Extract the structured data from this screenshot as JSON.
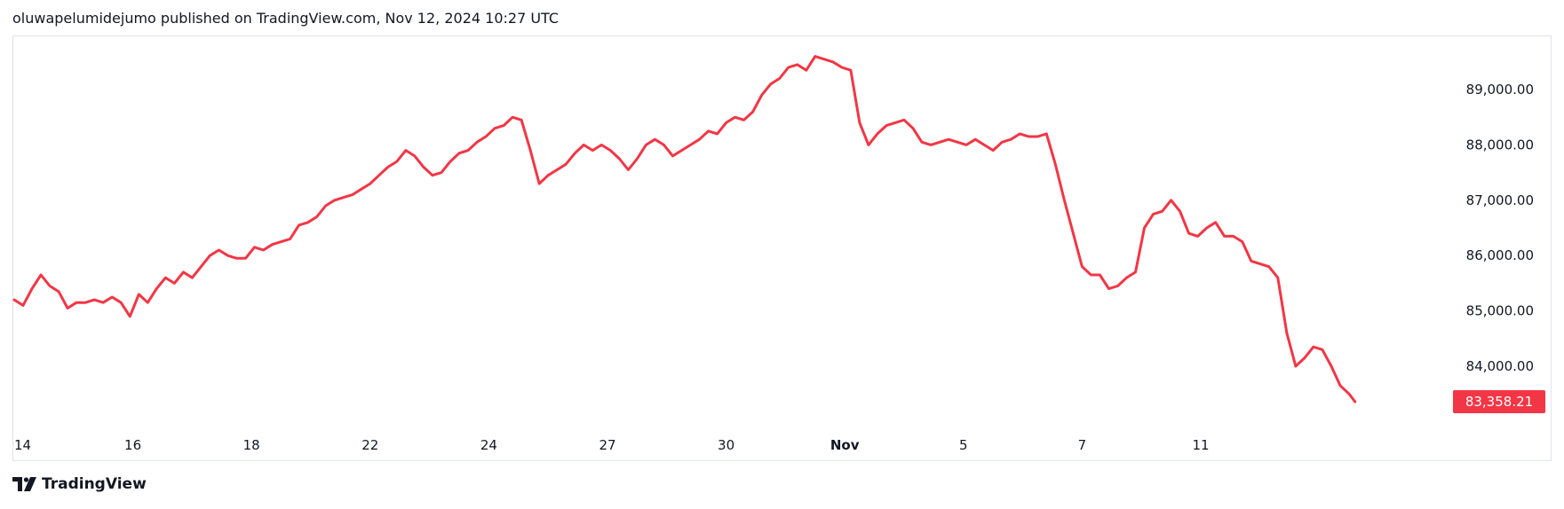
{
  "header": {
    "publish_line": "oluwapelumidejumo published on TradingView.com, Nov 12, 2024 10:27 UTC"
  },
  "footer": {
    "brand_name": "TradingView"
  },
  "colors": {
    "line": "#f23645",
    "price_badge_bg": "#f23645",
    "price_badge_text": "#ffffff",
    "axis_text": "#131722",
    "frame": "#e0e3eb"
  },
  "chart_data": {
    "type": "line",
    "title": "",
    "xlabel": "",
    "ylabel": "",
    "grid": false,
    "y_axis_position": "right",
    "ylim": [
      83200,
      89800
    ],
    "y_ticks": [
      84000,
      85000,
      86000,
      87000,
      88000,
      89000
    ],
    "y_tick_labels": [
      "84,000.00",
      "85,000.00",
      "86,000.00",
      "87,000.00",
      "88,000.00",
      "89,000.00"
    ],
    "x_range": [
      0,
      31.6
    ],
    "x_ticks": [
      {
        "x": 0,
        "label": "14"
      },
      {
        "x": 2,
        "label": "16"
      },
      {
        "x": 4,
        "label": "18"
      },
      {
        "x": 6,
        "label": "22"
      },
      {
        "x": 8,
        "label": "24"
      },
      {
        "x": 10,
        "label": "27"
      },
      {
        "x": 12,
        "label": "30"
      },
      {
        "x": 14,
        "label": "Nov"
      },
      {
        "x": 16,
        "label": "5"
      },
      {
        "x": 18,
        "label": "7"
      },
      {
        "x": 20,
        "label": "11"
      }
    ],
    "last_price": 83358.21,
    "last_price_label": "83,358.21",
    "series": [
      {
        "points": [
          [
            0.0,
            85200
          ],
          [
            0.15,
            85100
          ],
          [
            0.3,
            85400
          ],
          [
            0.45,
            85650
          ],
          [
            0.6,
            85450
          ],
          [
            0.75,
            85350
          ],
          [
            0.9,
            85050
          ],
          [
            1.05,
            85150
          ],
          [
            1.2,
            85150
          ],
          [
            1.35,
            85200
          ],
          [
            1.5,
            85150
          ],
          [
            1.65,
            85250
          ],
          [
            1.8,
            85150
          ],
          [
            1.95,
            84900
          ],
          [
            2.1,
            85300
          ],
          [
            2.25,
            85150
          ],
          [
            2.4,
            85400
          ],
          [
            2.55,
            85600
          ],
          [
            2.7,
            85500
          ],
          [
            2.85,
            85700
          ],
          [
            3.0,
            85600
          ],
          [
            3.15,
            85800
          ],
          [
            3.3,
            86000
          ],
          [
            3.45,
            86100
          ],
          [
            3.6,
            86000
          ],
          [
            3.75,
            85950
          ],
          [
            3.9,
            85950
          ],
          [
            4.05,
            86150
          ],
          [
            4.2,
            86100
          ],
          [
            4.35,
            86200
          ],
          [
            4.5,
            86250
          ],
          [
            4.65,
            86300
          ],
          [
            4.8,
            86550
          ],
          [
            4.95,
            86600
          ],
          [
            5.1,
            86700
          ],
          [
            5.25,
            86900
          ],
          [
            5.4,
            87000
          ],
          [
            5.55,
            87050
          ],
          [
            5.7,
            87100
          ],
          [
            5.85,
            87200
          ],
          [
            6.0,
            87300
          ],
          [
            6.15,
            87450
          ],
          [
            6.3,
            87600
          ],
          [
            6.45,
            87700
          ],
          [
            6.6,
            87900
          ],
          [
            6.75,
            87800
          ],
          [
            6.9,
            87600
          ],
          [
            7.05,
            87450
          ],
          [
            7.2,
            87500
          ],
          [
            7.35,
            87700
          ],
          [
            7.5,
            87850
          ],
          [
            7.65,
            87900
          ],
          [
            7.8,
            88050
          ],
          [
            7.95,
            88150
          ],
          [
            8.1,
            88300
          ],
          [
            8.25,
            88350
          ],
          [
            8.4,
            88500
          ],
          [
            8.55,
            88450
          ],
          [
            8.7,
            87900
          ],
          [
            8.85,
            87300
          ],
          [
            9.0,
            87450
          ],
          [
            9.15,
            87550
          ],
          [
            9.3,
            87650
          ],
          [
            9.45,
            87850
          ],
          [
            9.6,
            88000
          ],
          [
            9.75,
            87900
          ],
          [
            9.9,
            88000
          ],
          [
            10.05,
            87900
          ],
          [
            10.2,
            87750
          ],
          [
            10.35,
            87550
          ],
          [
            10.5,
            87750
          ],
          [
            10.65,
            88000
          ],
          [
            10.8,
            88100
          ],
          [
            10.95,
            88000
          ],
          [
            11.1,
            87800
          ],
          [
            11.25,
            87900
          ],
          [
            11.4,
            88000
          ],
          [
            11.55,
            88100
          ],
          [
            11.7,
            88250
          ],
          [
            11.85,
            88200
          ],
          [
            12.0,
            88400
          ],
          [
            12.15,
            88500
          ],
          [
            12.3,
            88450
          ],
          [
            12.45,
            88600
          ],
          [
            12.6,
            88900
          ],
          [
            12.75,
            89100
          ],
          [
            12.9,
            89200
          ],
          [
            13.05,
            89400
          ],
          [
            13.2,
            89450
          ],
          [
            13.35,
            89350
          ],
          [
            13.5,
            89600
          ],
          [
            13.65,
            89550
          ],
          [
            13.8,
            89500
          ],
          [
            13.95,
            89400
          ],
          [
            14.1,
            89350
          ],
          [
            14.25,
            88400
          ],
          [
            14.4,
            88000
          ],
          [
            14.55,
            88200
          ],
          [
            14.7,
            88350
          ],
          [
            14.85,
            88400
          ],
          [
            15.0,
            88450
          ],
          [
            15.15,
            88300
          ],
          [
            15.3,
            88050
          ],
          [
            15.45,
            88000
          ],
          [
            15.6,
            88050
          ],
          [
            15.75,
            88100
          ],
          [
            15.9,
            88050
          ],
          [
            16.05,
            88000
          ],
          [
            16.2,
            88100
          ],
          [
            16.35,
            88000
          ],
          [
            16.5,
            87900
          ],
          [
            16.65,
            88050
          ],
          [
            16.8,
            88100
          ],
          [
            16.95,
            88200
          ],
          [
            17.1,
            88150
          ],
          [
            17.25,
            88150
          ],
          [
            17.4,
            88200
          ],
          [
            17.55,
            87650
          ],
          [
            17.7,
            87000
          ],
          [
            17.85,
            86400
          ],
          [
            18.0,
            85800
          ],
          [
            18.15,
            85650
          ],
          [
            18.3,
            85650
          ],
          [
            18.45,
            85400
          ],
          [
            18.6,
            85450
          ],
          [
            18.75,
            85600
          ],
          [
            18.9,
            85700
          ],
          [
            19.05,
            86500
          ],
          [
            19.2,
            86750
          ],
          [
            19.35,
            86800
          ],
          [
            19.5,
            87000
          ],
          [
            19.65,
            86800
          ],
          [
            19.8,
            86400
          ],
          [
            19.95,
            86350
          ],
          [
            20.1,
            86500
          ],
          [
            20.25,
            86600
          ],
          [
            20.4,
            86350
          ],
          [
            20.55,
            86350
          ],
          [
            20.7,
            86250
          ],
          [
            20.85,
            85900
          ],
          [
            21.0,
            85850
          ],
          [
            21.15,
            85800
          ],
          [
            21.3,
            85600
          ],
          [
            21.45,
            84600
          ],
          [
            21.6,
            84000
          ],
          [
            21.75,
            84150
          ],
          [
            21.9,
            84350
          ],
          [
            22.05,
            84300
          ],
          [
            22.2,
            84000
          ],
          [
            22.35,
            83650
          ],
          [
            22.5,
            83500
          ],
          [
            22.6,
            83358.21
          ]
        ]
      }
    ]
  }
}
